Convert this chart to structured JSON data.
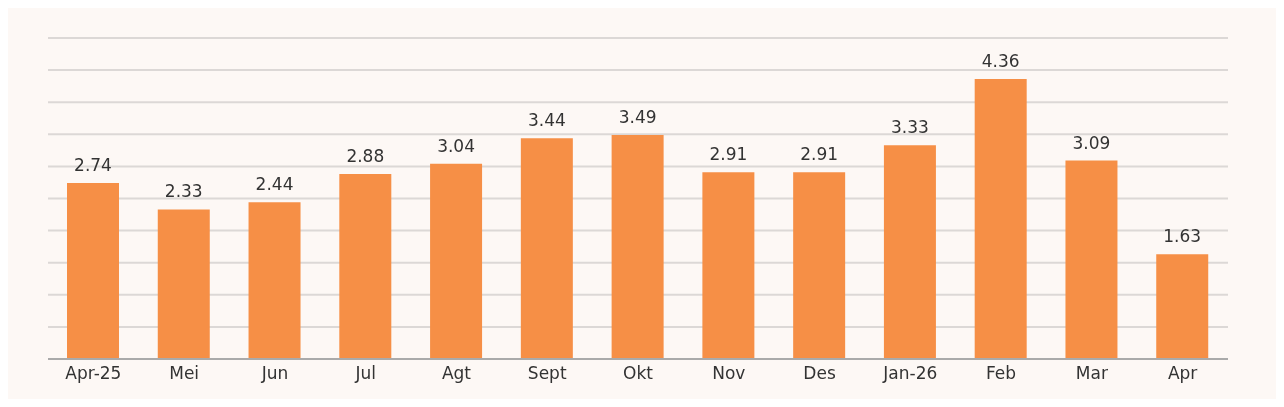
{
  "chart_data": {
    "type": "bar",
    "categories": [
      "Apr-25",
      "Mei",
      "Jun",
      "Jul",
      "Agt",
      "Sept",
      "Okt",
      "Nov",
      "Des",
      "Jan-26",
      "Feb",
      "Mar",
      "Apr"
    ],
    "values": [
      2.74,
      2.33,
      2.44,
      2.88,
      3.04,
      3.44,
      3.49,
      2.91,
      2.91,
      3.33,
      4.36,
      3.09,
      1.63
    ],
    "color": "#f68f46",
    "ylim": [
      0,
      5
    ],
    "yticks": [
      {
        "value": 0,
        "label": null
      },
      {
        "value": 0.5,
        "label": null
      },
      {
        "value": 1,
        "label": null
      },
      {
        "value": 1.5,
        "label": null
      },
      {
        "value": 2,
        "label": null
      },
      {
        "value": 2.5,
        "label": null
      },
      {
        "value": 3,
        "label": null
      },
      {
        "value": 3.5,
        "label": null
      },
      {
        "value": 4,
        "label": null
      },
      {
        "value": 4.5,
        "label": null
      },
      {
        "value": 5,
        "label": null
      }
    ],
    "grid": "y",
    "data_labels": true,
    "tick_labels": "x",
    "legend": false
  }
}
